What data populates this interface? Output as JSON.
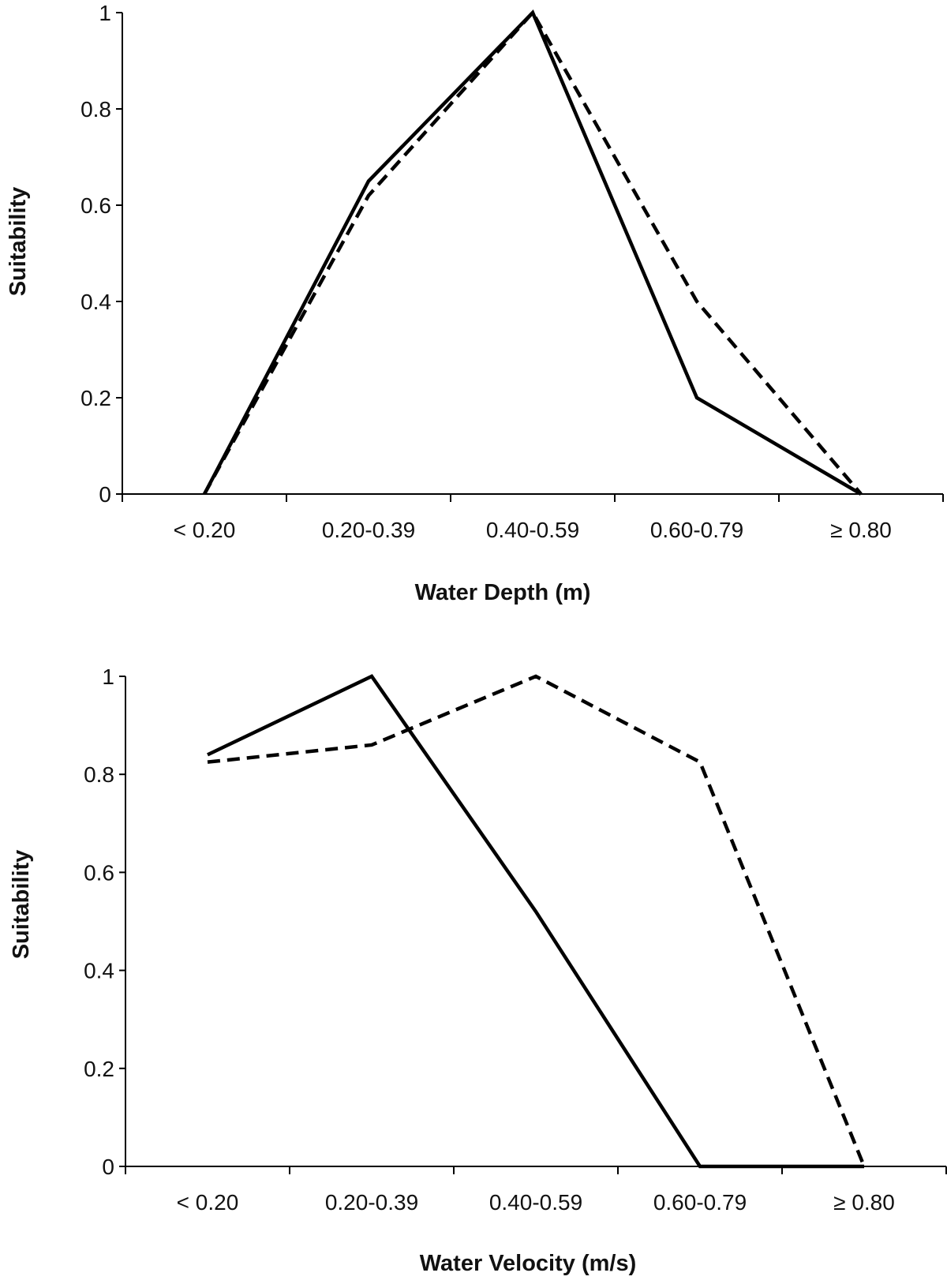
{
  "chart_data": [
    {
      "type": "line",
      "title": "",
      "xlabel": "Water Depth (m)",
      "ylabel": "Suitability",
      "categories": [
        "< 0.20",
        "0.20-0.39",
        "0.40-0.59",
        "0.60-0.79",
        "≥ 0.80"
      ],
      "ylim": [
        0,
        1
      ],
      "yticks": [
        "0",
        "0.2",
        "0.4",
        "0.6",
        "0.8",
        "1"
      ],
      "grid": false,
      "legend": "none",
      "series": [
        {
          "style": "solid",
          "color": "#000000",
          "values": [
            0,
            0.65,
            1.0,
            0.2,
            0
          ]
        },
        {
          "style": "dashed",
          "color": "#000000",
          "values": [
            0,
            0.62,
            1.0,
            0.4,
            0
          ]
        }
      ]
    },
    {
      "type": "line",
      "title": "",
      "xlabel": "Water Velocity (m/s)",
      "ylabel": "Suitability",
      "categories": [
        "< 0.20",
        "0.20-0.39",
        "0.40-0.59",
        "0.60-0.79",
        "≥ 0.80"
      ],
      "ylim": [
        0,
        1
      ],
      "yticks": [
        "0",
        "0.2",
        "0.4",
        "0.6",
        "0.8",
        "1"
      ],
      "grid": false,
      "legend": "none",
      "series": [
        {
          "style": "solid",
          "color": "#000000",
          "values": [
            0.84,
            1.0,
            0.52,
            0,
            0
          ]
        },
        {
          "style": "dashed",
          "color": "#000000",
          "values": [
            0.825,
            0.86,
            1.0,
            0.825,
            0
          ]
        }
      ]
    }
  ]
}
